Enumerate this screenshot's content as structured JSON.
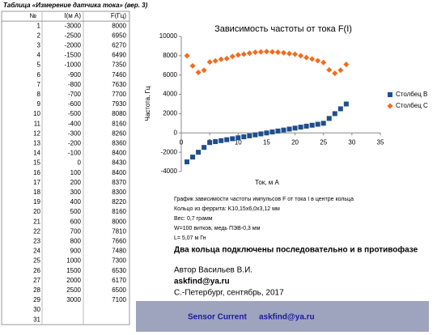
{
  "table": {
    "title": "Таблица «Измерение датчика тока» (вер. 3)",
    "header": [
      "№",
      "I(м А)",
      "F(Гц)"
    ],
    "rows": [
      [
        1,
        -3000,
        8000
      ],
      [
        2,
        -2500,
        6950
      ],
      [
        3,
        -2000,
        6270
      ],
      [
        4,
        -1500,
        6490
      ],
      [
        5,
        -1000,
        7350
      ],
      [
        6,
        -900,
        7460
      ],
      [
        7,
        -800,
        7630
      ],
      [
        8,
        -700,
        7700
      ],
      [
        9,
        -600,
        7930
      ],
      [
        10,
        -500,
        8080
      ],
      [
        11,
        -400,
        8160
      ],
      [
        12,
        -300,
        8260
      ],
      [
        13,
        -200,
        8360
      ],
      [
        14,
        -100,
        8400
      ],
      [
        15,
        0,
        8430
      ],
      [
        16,
        100,
        8400
      ],
      [
        17,
        200,
        8370
      ],
      [
        18,
        300,
        8300
      ],
      [
        19,
        400,
        8220
      ],
      [
        20,
        500,
        8160
      ],
      [
        21,
        600,
        8000
      ],
      [
        22,
        700,
        7810
      ],
      [
        23,
        800,
        7660
      ],
      [
        24,
        900,
        7480
      ],
      [
        25,
        1000,
        7300
      ],
      [
        26,
        1500,
        6530
      ],
      [
        27,
        2000,
        6170
      ],
      [
        28,
        2500,
        6500
      ],
      [
        29,
        3000,
        7100
      ],
      [
        30
      ],
      [
        31
      ]
    ]
  },
  "chart_data": {
    "type": "scatter",
    "title": "Зависимость частоты от тока F(I)",
    "x_label": "Ток, м А",
    "y_label": "Частота, Гц",
    "x": [
      1,
      2,
      3,
      4,
      5,
      6,
      7,
      8,
      9,
      10,
      11,
      12,
      13,
      14,
      15,
      16,
      17,
      18,
      19,
      20,
      21,
      22,
      23,
      24,
      25,
      26,
      27,
      28,
      29
    ],
    "series": [
      {
        "name": "Столбец B",
        "color": "#1f4e8c",
        "marker": "square",
        "values": [
          -3000,
          -2500,
          -2000,
          -1500,
          -1000,
          -900,
          -800,
          -700,
          -600,
          -500,
          -400,
          -300,
          -200,
          -100,
          0,
          100,
          200,
          300,
          400,
          500,
          600,
          700,
          800,
          900,
          1000,
          1500,
          2000,
          2500,
          3000
        ]
      },
      {
        "name": "Столбец C",
        "color": "#f26b1d",
        "marker": "diamond",
        "values": [
          8000,
          6950,
          6270,
          6490,
          7350,
          7460,
          7630,
          7700,
          7930,
          8080,
          8160,
          8260,
          8360,
          8400,
          8430,
          8400,
          8370,
          8300,
          8220,
          8160,
          8000,
          7810,
          7660,
          7480,
          7300,
          6530,
          6170,
          6500,
          7100
        ]
      }
    ],
    "xlim": [
      0,
      35
    ],
    "xticks": [
      0,
      5,
      10,
      15,
      20,
      25,
      30,
      35
    ],
    "ylim": [
      -4000,
      10000
    ],
    "yticks": [
      -4000,
      -2000,
      0,
      2000,
      4000,
      6000,
      8000,
      10000
    ],
    "grid": false,
    "legend": "right"
  },
  "notes": [
    "График зависимости частоты импульсов  F  от тока I в центре кольца",
    "Кольцо из феррита:  K10,15х6,0х3,12 мм",
    "Вес: 0,7 грамм",
    "W=100 витков, медь ПЭВ-0,3 мм",
    "L= 5,07 м Гн",
    "Два кольца подключены последовательно и в противофазе",
    "Автор Васильев В.И.",
    "askfind@ya.ru",
    "С.-Петербург, сентябрь, 2017"
  ],
  "banner": [
    "Sensor Current",
    "askfind@ya.ru"
  ]
}
